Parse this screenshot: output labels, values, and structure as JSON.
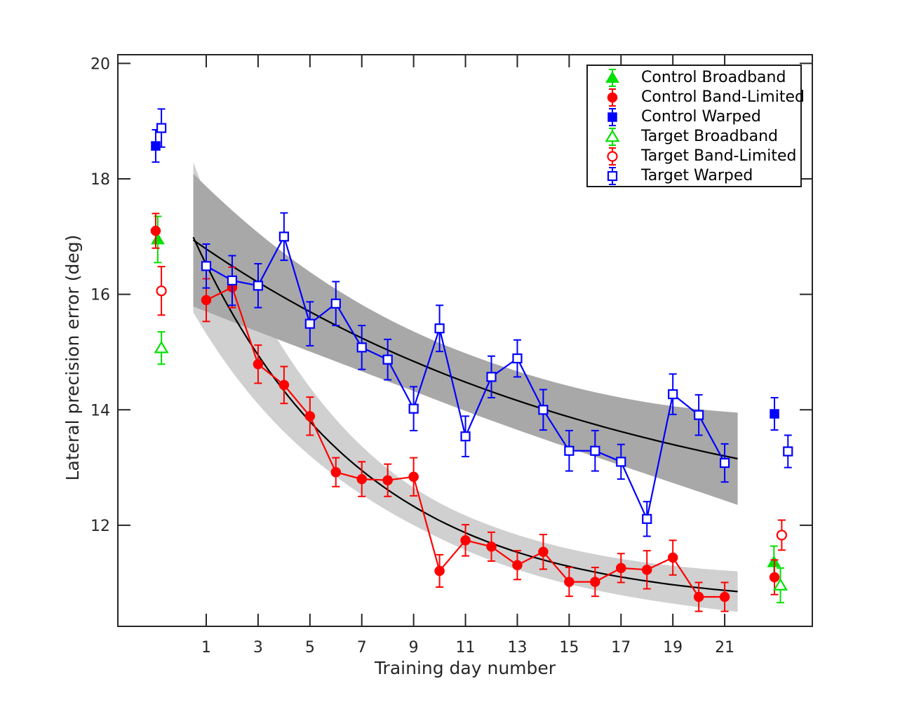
{
  "figure": {
    "background": "#ffffff"
  },
  "chart_data": {
    "type": "line-scatter-errorbar",
    "title": "",
    "xlabel": "Training day number",
    "ylabel": "Lateral precision error (deg)",
    "xlim": [
      -2.41,
      24.38
    ],
    "ylim": [
      10.25,
      20.15
    ],
    "xticks": [
      1,
      3,
      5,
      7,
      9,
      11,
      13,
      15,
      17,
      19,
      21
    ],
    "yticks": [
      12,
      14,
      16,
      18,
      20
    ],
    "grid": false,
    "frame_color": "#262626",
    "colors": {
      "broadband_green": "#00E000",
      "band_limited_red": "#FF0000",
      "warped_blue": "#0000FF",
      "fit_line": "#000000",
      "band_dark": "#A8A8A8",
      "band_light": "#D0D0D0"
    },
    "legend": {
      "position": "top-right",
      "entries": [
        {
          "label": "Control Broadband",
          "marker": "triangle",
          "filled": true,
          "color": "#00E000"
        },
        {
          "label": "Control Band-Limited",
          "marker": "circle",
          "filled": true,
          "color": "#FF0000"
        },
        {
          "label": "Control Warped",
          "marker": "square",
          "filled": true,
          "color": "#0000FF"
        },
        {
          "label": "Target Broadband",
          "marker": "triangle",
          "filled": false,
          "color": "#00E000"
        },
        {
          "label": "Target Band-Limited",
          "marker": "circle",
          "filled": false,
          "color": "#FF0000"
        },
        {
          "label": "Target Warped",
          "marker": "square",
          "filled": false,
          "color": "#0000FF"
        }
      ]
    },
    "training_series": [
      {
        "name": "Control Band-Limited",
        "marker": "circle",
        "filled": true,
        "color": "#FF0000",
        "x": [
          1,
          2,
          3,
          4,
          5,
          6,
          7,
          8,
          9,
          10,
          11,
          12,
          13,
          14,
          15,
          16,
          17,
          18,
          19,
          20,
          21
        ],
        "y": [
          15.9,
          16.12,
          14.79,
          14.43,
          13.89,
          12.92,
          12.8,
          12.78,
          12.84,
          11.21,
          11.74,
          11.63,
          11.31,
          11.54,
          11.02,
          11.02,
          11.26,
          11.23,
          11.44,
          10.76,
          10.76
        ],
        "err": [
          0.37,
          0.35,
          0.33,
          0.32,
          0.33,
          0.25,
          0.3,
          0.28,
          0.33,
          0.28,
          0.27,
          0.25,
          0.25,
          0.3,
          0.25,
          0.25,
          0.25,
          0.33,
          0.3,
          0.25,
          0.25
        ]
      },
      {
        "name": "Target Warped",
        "marker": "square",
        "filled": false,
        "color": "#0000FF",
        "x": [
          1,
          2,
          3,
          4,
          5,
          6,
          7,
          8,
          9,
          10,
          11,
          12,
          13,
          14,
          15,
          16,
          17,
          18,
          19,
          20,
          21
        ],
        "y": [
          16.49,
          16.24,
          16.15,
          17.0,
          15.49,
          15.84,
          15.08,
          14.87,
          14.02,
          15.41,
          13.54,
          14.57,
          14.89,
          14.0,
          13.29,
          13.29,
          13.1,
          12.11,
          14.27,
          13.91,
          13.08
        ],
        "err": [
          0.38,
          0.43,
          0.38,
          0.41,
          0.38,
          0.38,
          0.38,
          0.35,
          0.38,
          0.4,
          0.35,
          0.36,
          0.32,
          0.35,
          0.35,
          0.35,
          0.3,
          0.3,
          0.35,
          0.35,
          0.33
        ]
      }
    ],
    "fits": [
      {
        "name": "Control Band-Limited exponential fit",
        "line_color": "#000000",
        "band_color": "#D0D0D0",
        "a": 10.6,
        "b": 6.9,
        "tau": 6.5,
        "t_start": 0.5,
        "t_end": 21.5,
        "band_halfwidth": {
          "start": 1.3,
          "mid": 0.3,
          "end": 0.35
        }
      },
      {
        "name": "Target Warped exponential fit",
        "line_color": "#000000",
        "band_color": "#A8A8A8",
        "a": 11.6,
        "b": 5.5,
        "tau": 17,
        "t_start": 0.5,
        "t_end": 21.5,
        "band_halfwidth": {
          "start": 1.15,
          "mid": 0.5,
          "end": 0.8
        }
      }
    ],
    "pretest_points": [
      {
        "condition": "Target Broadband",
        "marker": "triangle",
        "filled": false,
        "color": "#00E000",
        "day": -0.73,
        "value": 15.07,
        "err": 0.28
      },
      {
        "condition": "Control Broadband",
        "marker": "triangle",
        "filled": true,
        "color": "#00E000",
        "day": -0.87,
        "value": 16.95,
        "err": 0.4
      },
      {
        "condition": "Control Band-Limited",
        "marker": "circle",
        "filled": true,
        "color": "#FF0000",
        "day": -0.95,
        "value": 17.1,
        "err": 0.3
      },
      {
        "condition": "Target Band-Limited",
        "marker": "circle",
        "filled": false,
        "color": "#FF0000",
        "day": -0.73,
        "value": 16.06,
        "err": 0.42
      },
      {
        "condition": "Control Warped",
        "marker": "square",
        "filled": true,
        "color": "#0000FF",
        "day": -0.95,
        "value": 18.57,
        "err": 0.28
      },
      {
        "condition": "Target Warped",
        "marker": "square",
        "filled": false,
        "color": "#0000FF",
        "day": -0.73,
        "value": 18.88,
        "err": 0.33
      }
    ],
    "posttest_points": [
      {
        "condition": "Control Broadband",
        "marker": "triangle",
        "filled": true,
        "color": "#00E000",
        "day": 22.9,
        "value": 11.36,
        "err": 0.28
      },
      {
        "condition": "Control Band-Limited",
        "marker": "circle",
        "filled": true,
        "color": "#FF0000",
        "day": 22.92,
        "value": 11.1,
        "err": 0.3
      },
      {
        "condition": "Target Broadband",
        "marker": "triangle",
        "filled": false,
        "color": "#00E000",
        "day": 23.15,
        "value": 10.96,
        "err": 0.3
      },
      {
        "condition": "Target Band-Limited",
        "marker": "circle",
        "filled": false,
        "color": "#FF0000",
        "day": 23.2,
        "value": 11.83,
        "err": 0.26
      },
      {
        "condition": "Control Warped",
        "marker": "square",
        "filled": true,
        "color": "#0000FF",
        "day": 22.92,
        "value": 13.93,
        "err": 0.28
      },
      {
        "condition": "Target Warped",
        "marker": "square",
        "filled": false,
        "color": "#0000FF",
        "day": 23.44,
        "value": 13.28,
        "err": 0.28
      }
    ]
  }
}
